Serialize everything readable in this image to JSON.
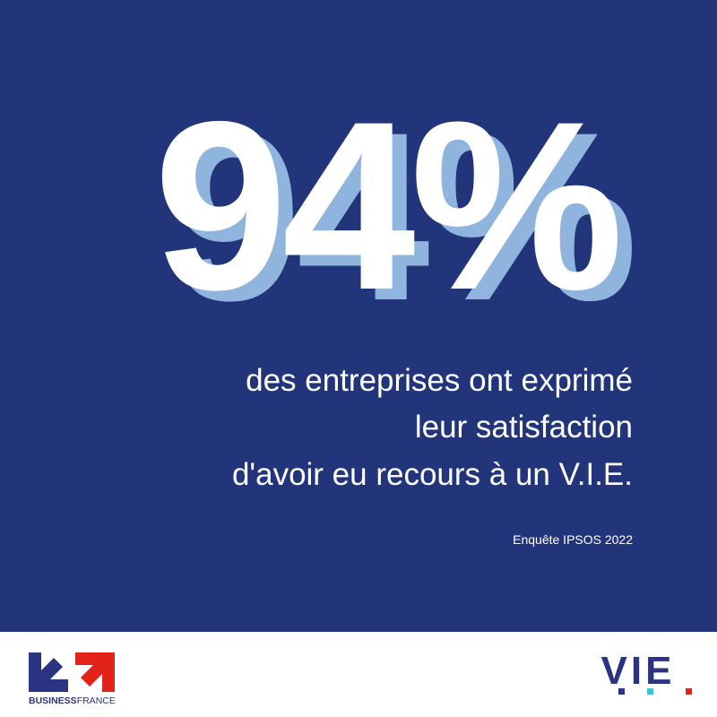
{
  "stat": "94%",
  "description": [
    "des entreprises ont exprimé",
    "leur satisfaction",
    "d'avoir eu recours à un V.I.E."
  ],
  "source": "Enquête IPSOS 2022",
  "logos": {
    "business": "BUSINESS",
    "france": "FRANCE",
    "vie": "VIE"
  }
}
